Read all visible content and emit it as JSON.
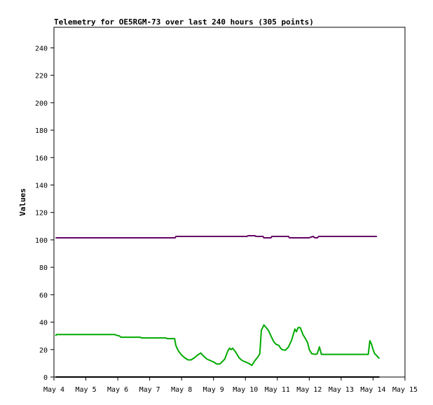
{
  "chart_data": {
    "type": "line",
    "title": "Telemetry for OE5RGM-73 over last 240 hours (305 points)",
    "xlabel": "",
    "ylabel": "Values",
    "x_unit": "days",
    "x_range": [
      4,
      15
    ],
    "y_range": [
      0,
      255
    ],
    "x_ticks": [
      {
        "value": 4,
        "label": "May 4"
      },
      {
        "value": 5,
        "label": "May 5"
      },
      {
        "value": 6,
        "label": "May 6"
      },
      {
        "value": 7,
        "label": "May 7"
      },
      {
        "value": 8,
        "label": "May 8"
      },
      {
        "value": 9,
        "label": "May 9"
      },
      {
        "value": 10,
        "label": "May 10"
      },
      {
        "value": 11,
        "label": "May 11"
      },
      {
        "value": 12,
        "label": "May 12"
      },
      {
        "value": 13,
        "label": "May 13"
      },
      {
        "value": 14,
        "label": "May 14"
      },
      {
        "value": 15,
        "label": "May 15"
      }
    ],
    "y_ticks": [
      0,
      20,
      40,
      60,
      80,
      100,
      120,
      140,
      160,
      180,
      200,
      220,
      240
    ],
    "grid": false,
    "series": [
      {
        "color": "#660066",
        "points": [
          [
            4.05,
            101.5
          ],
          [
            7.8,
            101.5
          ],
          [
            7.82,
            102.5
          ],
          [
            10.05,
            102.5
          ],
          [
            10.08,
            103
          ],
          [
            10.3,
            103
          ],
          [
            10.33,
            102.5
          ],
          [
            10.55,
            102.5
          ],
          [
            10.58,
            101.5
          ],
          [
            10.8,
            101.5
          ],
          [
            10.83,
            102.5
          ],
          [
            11.35,
            102.5
          ],
          [
            11.38,
            101.5
          ],
          [
            12.0,
            101.5
          ],
          [
            12.05,
            102
          ],
          [
            12.12,
            102.5
          ],
          [
            12.18,
            101.5
          ],
          [
            12.25,
            101.5
          ],
          [
            12.3,
            102.5
          ],
          [
            14.12,
            102.5
          ]
        ]
      },
      {
        "color": "#00aa00",
        "points": [
          [
            4.05,
            30
          ],
          [
            4.08,
            31
          ],
          [
            5.9,
            31
          ],
          [
            5.95,
            30.5
          ],
          [
            6.05,
            30
          ],
          [
            6.1,
            29
          ],
          [
            6.7,
            29
          ],
          [
            6.75,
            28.5
          ],
          [
            7.5,
            28.5
          ],
          [
            7.55,
            28
          ],
          [
            7.78,
            28
          ],
          [
            7.82,
            23
          ],
          [
            7.9,
            19
          ],
          [
            8.0,
            16
          ],
          [
            8.1,
            14
          ],
          [
            8.2,
            12.5
          ],
          [
            8.3,
            12.5
          ],
          [
            8.4,
            14
          ],
          [
            8.5,
            16
          ],
          [
            8.6,
            17.5
          ],
          [
            8.7,
            15
          ],
          [
            8.8,
            13
          ],
          [
            8.9,
            12
          ],
          [
            9.0,
            11
          ],
          [
            9.1,
            9.5
          ],
          [
            9.2,
            9.5
          ],
          [
            9.35,
            13
          ],
          [
            9.45,
            19
          ],
          [
            9.5,
            21
          ],
          [
            9.55,
            20
          ],
          [
            9.6,
            21
          ],
          [
            9.7,
            18
          ],
          [
            9.8,
            14
          ],
          [
            9.9,
            12
          ],
          [
            10.0,
            11
          ],
          [
            10.1,
            10
          ],
          [
            10.2,
            8.5
          ],
          [
            10.3,
            12
          ],
          [
            10.4,
            15
          ],
          [
            10.45,
            17
          ],
          [
            10.5,
            34
          ],
          [
            10.58,
            38
          ],
          [
            10.65,
            36
          ],
          [
            10.72,
            34
          ],
          [
            10.8,
            30
          ],
          [
            10.88,
            26
          ],
          [
            10.95,
            24
          ],
          [
            11.05,
            23
          ],
          [
            11.1,
            21
          ],
          [
            11.15,
            20
          ],
          [
            11.25,
            19.5
          ],
          [
            11.35,
            22
          ],
          [
            11.45,
            27
          ],
          [
            11.5,
            31
          ],
          [
            11.55,
            35
          ],
          [
            11.6,
            33
          ],
          [
            11.65,
            36
          ],
          [
            11.72,
            36
          ],
          [
            11.8,
            31
          ],
          [
            11.88,
            28
          ],
          [
            11.95,
            25
          ],
          [
            12.0,
            20
          ],
          [
            12.08,
            17
          ],
          [
            12.2,
            16.5
          ],
          [
            12.25,
            17
          ],
          [
            12.32,
            22
          ],
          [
            12.38,
            16.5
          ],
          [
            13.85,
            16.5
          ],
          [
            13.9,
            26.5
          ],
          [
            13.95,
            24
          ],
          [
            14.0,
            20
          ],
          [
            14.05,
            17
          ],
          [
            14.1,
            16
          ],
          [
            14.15,
            14.5
          ],
          [
            14.2,
            13.5
          ]
        ]
      },
      {
        "color": "#000000",
        "points": [
          [
            4.05,
            0
          ],
          [
            14.2,
            0
          ]
        ]
      }
    ]
  }
}
